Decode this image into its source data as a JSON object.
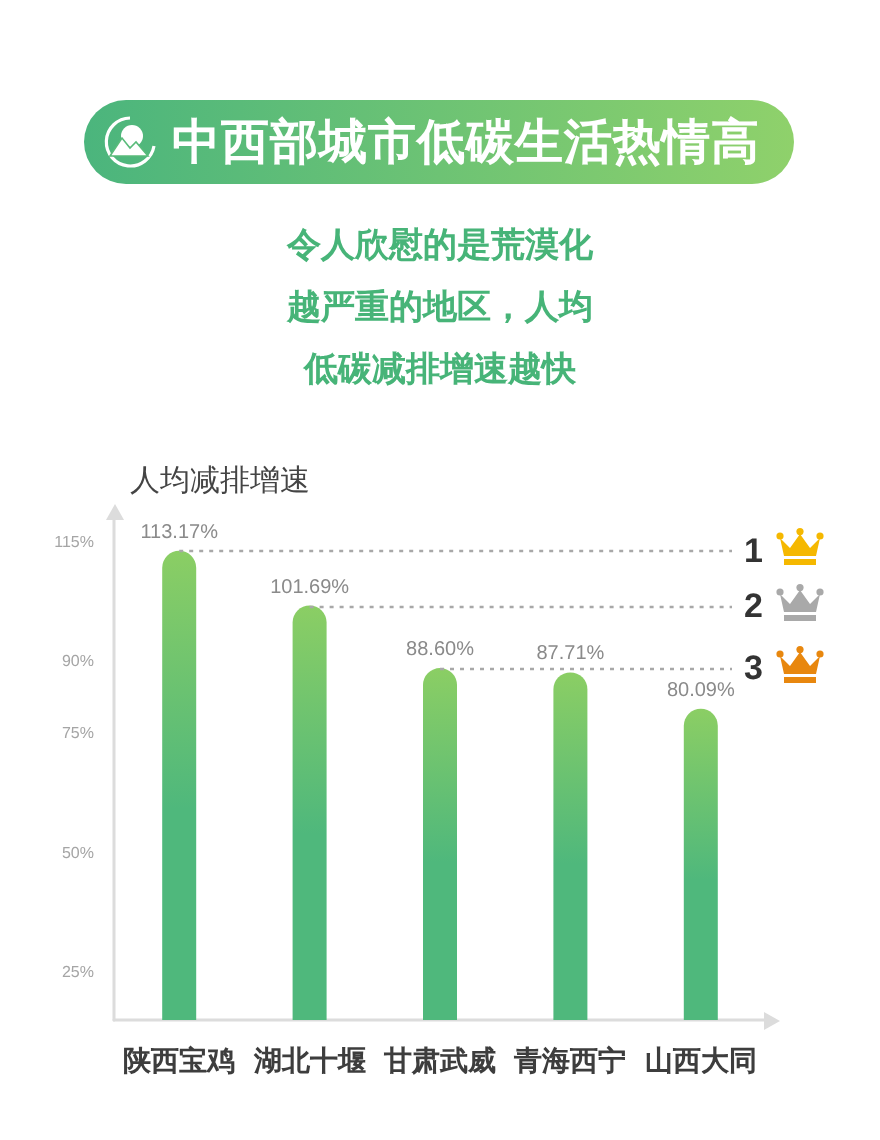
{
  "chart_data": {
    "type": "bar",
    "title": "中西部城市低碳生活热情高",
    "subtitle": "令人欣慰的是荒漠化越严重的地区，人均低碳减排增速越快",
    "ylabel": "人均减排增速",
    "categories": [
      "陕西宝鸡",
      "湖北十堰",
      "甘肃武威",
      "青海西宁",
      "山西大同"
    ],
    "values": [
      113.17,
      101.69,
      88.6,
      87.71,
      80.09
    ],
    "value_labels": [
      "113.17%",
      "101.69%",
      "88.60%",
      "87.71%",
      "80.09%"
    ],
    "color": "#4fb87c",
    "ylim": [
      15,
      120
    ],
    "yticks": [
      {
        "value": 25,
        "label": "25%"
      },
      {
        "value": 50,
        "label": "50%"
      },
      {
        "value": 75,
        "label": "75%"
      },
      {
        "value": 90,
        "label": "90%"
      },
      {
        "value": 115,
        "label": "115%"
      }
    ],
    "ref_lines": [
      {
        "axis": "y",
        "value": 113.17,
        "color": "#a8a8a8",
        "line_style": "dotted"
      },
      {
        "axis": "y",
        "value": 101.69,
        "color": "#a8a8a8",
        "line_style": "dotted"
      },
      {
        "axis": "y",
        "value": 88.6,
        "color": "#a8a8a8",
        "line_style": "dotted"
      }
    ],
    "annotations": [
      "1",
      "2",
      "3"
    ]
  }
}
